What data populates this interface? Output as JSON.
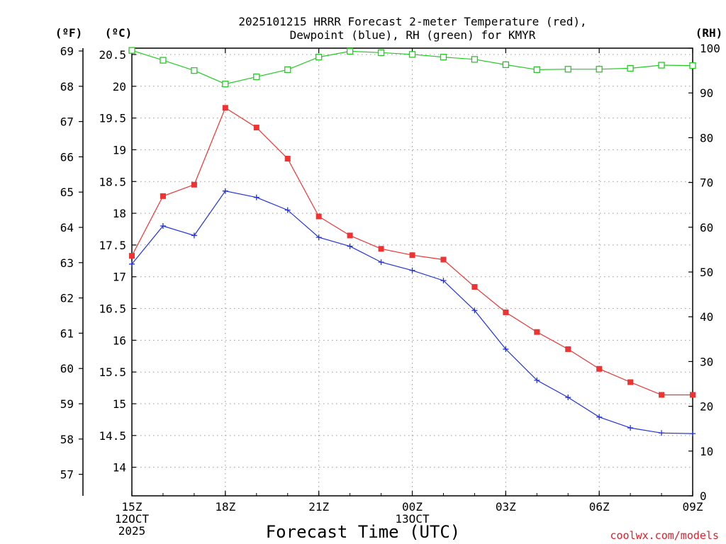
{
  "chart_data": {
    "type": "line",
    "title_line1": "2025101215 HRRR Forecast 2-meter Temperature (red),",
    "title_line2": "Dewpoint (blue), RH (green) for KMYR",
    "xlabel": "Forecast Time (UTC)",
    "credit": "coolwx.com/models",
    "axis_headers": {
      "fahrenheit": "(ºF)",
      "celsius": "(ºC)",
      "rh": "(RH)"
    },
    "x_hours": [
      0,
      1,
      2,
      3,
      4,
      5,
      6,
      7,
      8,
      9,
      10,
      11,
      12,
      13,
      14,
      15,
      16,
      17,
      18
    ],
    "x_ticks": [
      {
        "hour": 0,
        "lines": [
          "15Z",
          "12OCT",
          "2025"
        ]
      },
      {
        "hour": 3,
        "lines": [
          "18Z"
        ]
      },
      {
        "hour": 6,
        "lines": [
          "21Z"
        ]
      },
      {
        "hour": 9,
        "lines": [
          "00Z",
          "13OCT"
        ]
      },
      {
        "hour": 12,
        "lines": [
          "03Z"
        ]
      },
      {
        "hour": 15,
        "lines": [
          "06Z"
        ]
      },
      {
        "hour": 18,
        "lines": [
          "09Z"
        ]
      }
    ],
    "celsius_range": [
      13.55,
      20.6
    ],
    "celsius_ticks": [
      "14",
      "14.5",
      "15",
      "15.5",
      "16",
      "16.5",
      "17",
      "17.5",
      "18",
      "18.5",
      "19",
      "19.5",
      "20",
      "20.5"
    ],
    "fahrenheit_ticks": [
      "57",
      "58",
      "59",
      "60",
      "61",
      "62",
      "63",
      "64",
      "65",
      "66",
      "67",
      "68",
      "69"
    ],
    "rh_range": [
      0,
      100
    ],
    "rh_ticks": [
      "0",
      "10",
      "20",
      "30",
      "40",
      "50",
      "60",
      "70",
      "80",
      "90",
      "100"
    ],
    "series": [
      {
        "name": "Temperature",
        "unit": "°C",
        "color": "#ee3333",
        "marker": "filled-square",
        "values": [
          17.33,
          18.27,
          18.45,
          19.66,
          19.35,
          18.86,
          17.95,
          17.65,
          17.44,
          17.34,
          17.27,
          16.84,
          16.44,
          16.13,
          15.86,
          15.55,
          15.34,
          15.14,
          15.14
        ]
      },
      {
        "name": "Dewpoint",
        "unit": "°C",
        "color": "#2233dd",
        "marker": "plus",
        "values": [
          17.2,
          17.8,
          17.65,
          18.35,
          18.25,
          18.05,
          17.62,
          17.48,
          17.23,
          17.1,
          16.94,
          16.47,
          15.86,
          15.37,
          15.1,
          14.79,
          14.62,
          14.54,
          14.53
        ]
      },
      {
        "name": "RH",
        "unit": "%",
        "color": "#22cc22",
        "marker": "open-square",
        "values": [
          99.5,
          97.3,
          95.0,
          92.0,
          93.6,
          95.2,
          98.0,
          99.3,
          99.0,
          98.6,
          98.0,
          97.5,
          96.3,
          95.2,
          95.3,
          95.3,
          95.5,
          96.2,
          96.1
        ]
      }
    ]
  }
}
